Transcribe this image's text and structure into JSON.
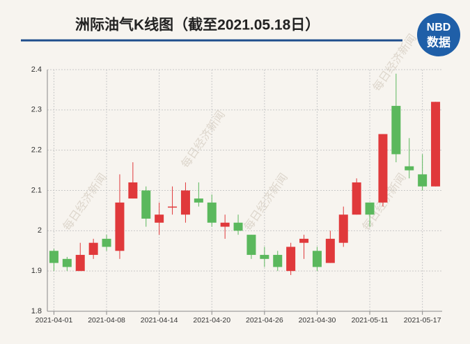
{
  "chart_data": {
    "type": "candlestick",
    "title": "洲际油气K线图（截至2021.05.18日）",
    "logo": {
      "top": "NBD",
      "bottom": "数据"
    },
    "watermark": "每日经济新闻",
    "categories": [
      "2021-04-01",
      null,
      null,
      null,
      "2021-04-08",
      null,
      null,
      null,
      "2021-04-14",
      null,
      null,
      null,
      "2021-04-20",
      null,
      null,
      null,
      "2021-04-26",
      null,
      null,
      null,
      "2021-04-30",
      null,
      null,
      null,
      "2021-05-11",
      null,
      null,
      null,
      "2021-05-17",
      null
    ],
    "series": [
      {
        "up_color": "#e0393b",
        "down_color": "#5bb85d",
        "open": [
          1.95,
          1.93,
          1.9,
          1.94,
          1.98,
          1.95,
          2.08,
          2.1,
          2.02,
          2.06,
          2.04,
          2.08,
          2.07,
          2.01,
          2.02,
          1.99,
          1.94,
          1.94,
          1.9,
          1.97,
          1.95,
          1.92,
          1.97,
          2.04,
          2.07,
          2.07,
          2.31,
          2.16,
          2.14,
          2.11
        ],
        "high": [
          1.955,
          1.935,
          1.97,
          1.98,
          1.99,
          2.14,
          2.17,
          2.11,
          2.07,
          2.11,
          2.12,
          2.12,
          2.09,
          2.04,
          2.04,
          1.99,
          1.96,
          1.95,
          1.97,
          1.99,
          1.96,
          2.0,
          2.06,
          2.13,
          2.07,
          2.24,
          2.39,
          2.23,
          2.19,
          2.32
        ],
        "low": [
          1.9,
          1.9,
          1.9,
          1.93,
          1.95,
          1.93,
          2.08,
          2.01,
          1.99,
          2.04,
          2.02,
          2.06,
          2.01,
          1.98,
          1.99,
          1.93,
          1.91,
          1.9,
          1.89,
          1.93,
          1.9,
          1.92,
          1.96,
          2.04,
          2.01,
          2.06,
          2.17,
          2.13,
          2.1,
          2.11
        ],
        "close": [
          1.92,
          1.91,
          1.94,
          1.97,
          1.96,
          2.07,
          2.12,
          2.03,
          2.04,
          2.06,
          2.1,
          2.07,
          2.02,
          2.02,
          2.0,
          1.94,
          1.93,
          1.91,
          1.96,
          1.98,
          1.91,
          1.98,
          2.04,
          2.12,
          2.04,
          2.24,
          2.19,
          2.15,
          2.11,
          2.32
        ]
      }
    ],
    "ylim": [
      1.8,
      2.4
    ],
    "yticks": [
      1.8,
      1.9,
      2,
      2.1,
      2.2,
      2.3,
      2.4
    ],
    "grid": true
  }
}
